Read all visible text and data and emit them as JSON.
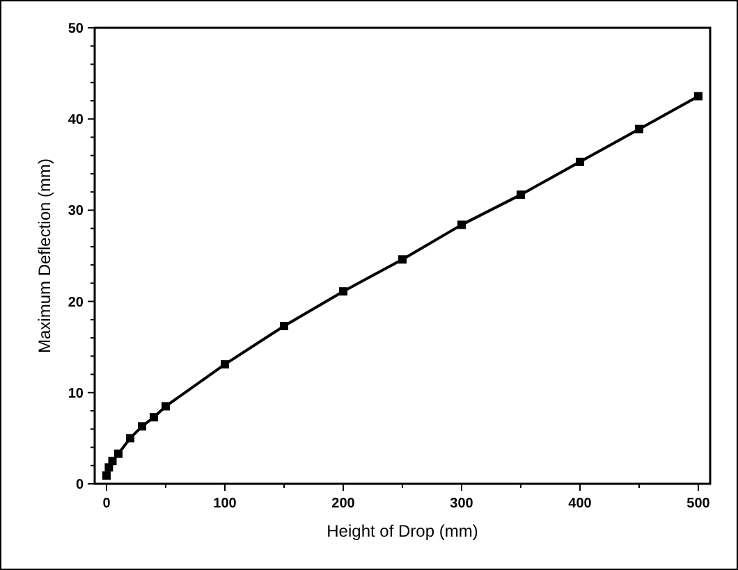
{
  "chart_data": {
    "type": "line",
    "xlabel": "Height of Drop (mm)",
    "ylabel": "Maximum Deflection (mm)",
    "xlim": [
      -10,
      510
    ],
    "ylim": [
      0,
      50
    ],
    "xticks": [
      0,
      {
        "value": 50,
        "label": null
      },
      100,
      {
        "value": 150,
        "label": null
      },
      200,
      {
        "value": 250,
        "label": null
      },
      300,
      {
        "value": 350,
        "label": null
      },
      400,
      {
        "value": 450,
        "label": null
      },
      500
    ],
    "yticks": [
      0,
      {
        "value": 2,
        "label": null
      },
      {
        "value": 4,
        "label": null
      },
      {
        "value": 6,
        "label": null
      },
      {
        "value": 8,
        "label": null
      },
      10,
      {
        "value": 12,
        "label": null
      },
      {
        "value": 14,
        "label": null
      },
      {
        "value": 16,
        "label": null
      },
      {
        "value": 18,
        "label": null
      },
      20,
      {
        "value": 22,
        "label": null
      },
      {
        "value": 24,
        "label": null
      },
      {
        "value": 26,
        "label": null
      },
      {
        "value": 28,
        "label": null
      },
      30,
      {
        "value": 32,
        "label": null
      },
      {
        "value": 34,
        "label": null
      },
      {
        "value": 36,
        "label": null
      },
      {
        "value": 38,
        "label": null
      },
      40,
      {
        "value": 42,
        "label": null
      },
      {
        "value": 44,
        "label": null
      },
      {
        "value": 46,
        "label": null
      },
      {
        "value": 48,
        "label": null
      },
      50
    ],
    "x": [
      0,
      2,
      5,
      10,
      20,
      30,
      40,
      50,
      100,
      150,
      200,
      250,
      300,
      350,
      400,
      450,
      500
    ],
    "series": [
      {
        "color": "#000000",
        "values": [
          0.9,
          1.8,
          2.5,
          3.3,
          5.0,
          6.3,
          7.3,
          8.5,
          13.1,
          17.3,
          21.1,
          24.6,
          28.4,
          31.7,
          35.3,
          38.9,
          42.5
        ]
      }
    ],
    "marker": "square",
    "line_style": "solid",
    "grid": false
  }
}
